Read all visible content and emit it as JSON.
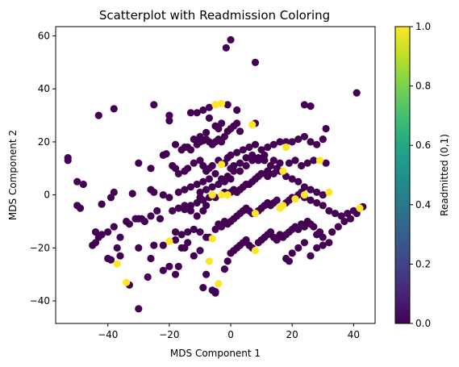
{
  "chart_data": {
    "type": "scatter",
    "title": "Scatterplot with Readmission Coloring",
    "xlabel": "MDS Component 1",
    "ylabel": "MDS Component 2",
    "xlim": [
      -57,
      47
    ],
    "ylim": [
      -48.5,
      63.5
    ],
    "xticks": [
      -40,
      -20,
      0,
      20,
      40
    ],
    "yticks": [
      -40,
      -20,
      0,
      20,
      40,
      60
    ],
    "grid": false,
    "colorbar": {
      "label": "Readmitted (0,1)",
      "range": [
        0,
        1
      ],
      "ticks": [
        0.0,
        0.2,
        0.4,
        0.6,
        0.8,
        1.0
      ],
      "colormap": "viridis"
    },
    "colors": {
      "not_readmitted": "#440154",
      "readmitted": "#fde725"
    },
    "points": [
      [
        0,
        58.5,
        0
      ],
      [
        -1.5,
        55.5,
        0
      ],
      [
        8,
        50,
        0
      ],
      [
        -38,
        32.5,
        0
      ],
      [
        -43,
        30,
        0
      ],
      [
        41,
        38.5,
        0
      ],
      [
        -13,
        31,
        0
      ],
      [
        -11,
        31,
        0
      ],
      [
        -9,
        32,
        0
      ],
      [
        -7,
        33,
        0
      ],
      [
        -5,
        34,
        1
      ],
      [
        -3,
        34.5,
        1
      ],
      [
        -1,
        34,
        0
      ],
      [
        2,
        32,
        0
      ],
      [
        24,
        34,
        0
      ],
      [
        26,
        33.5,
        0
      ],
      [
        -20,
        30,
        0
      ],
      [
        -25,
        34,
        0
      ],
      [
        -7,
        29,
        0
      ],
      [
        -53,
        14,
        0
      ],
      [
        -53,
        13,
        0
      ],
      [
        -30,
        12,
        0
      ],
      [
        -26,
        10,
        0
      ],
      [
        -22,
        15,
        0
      ],
      [
        -21,
        15.5,
        0
      ],
      [
        -15,
        18,
        0
      ],
      [
        -13,
        17,
        0
      ],
      [
        -11,
        19,
        0
      ],
      [
        -10,
        20,
        0
      ],
      [
        -9,
        20.5,
        0
      ],
      [
        -8,
        21,
        0
      ],
      [
        -7,
        20,
        0
      ],
      [
        -6,
        19,
        0
      ],
      [
        -5,
        20,
        0
      ],
      [
        -4,
        21,
        0
      ],
      [
        -3,
        20,
        0
      ],
      [
        -2,
        22,
        0
      ],
      [
        -1,
        24,
        0
      ],
      [
        0,
        25,
        0
      ],
      [
        1,
        26,
        0
      ],
      [
        2,
        27,
        0
      ],
      [
        3,
        24,
        0
      ],
      [
        -8,
        23.5,
        0
      ],
      [
        -10,
        22,
        0
      ],
      [
        -12,
        21,
        0
      ],
      [
        -14,
        18,
        0
      ],
      [
        -16,
        17,
        0
      ],
      [
        -18,
        19,
        0
      ],
      [
        -20,
        28,
        0
      ],
      [
        -4,
        25,
        0
      ],
      [
        7,
        26.5,
        1
      ],
      [
        8,
        27,
        0
      ],
      [
        -5,
        26,
        0
      ],
      [
        -3,
        27,
        0
      ],
      [
        -3,
        11.5,
        1
      ],
      [
        -1,
        14,
        0
      ],
      [
        0,
        15,
        0
      ],
      [
        2,
        16,
        0
      ],
      [
        4,
        17,
        0
      ],
      [
        6,
        18,
        0
      ],
      [
        8,
        19,
        0
      ],
      [
        10,
        17,
        0
      ],
      [
        12,
        18,
        0
      ],
      [
        14,
        19,
        0
      ],
      [
        16,
        20,
        0
      ],
      [
        18,
        18,
        1
      ],
      [
        20,
        20,
        0
      ],
      [
        22,
        21,
        0
      ],
      [
        24,
        22,
        0
      ],
      [
        26,
        20,
        0
      ],
      [
        28,
        19,
        0
      ],
      [
        30,
        21,
        0
      ],
      [
        -19,
        11,
        0
      ],
      [
        -18,
        10,
        0
      ],
      [
        -17,
        8,
        0
      ],
      [
        -15,
        9,
        0
      ],
      [
        -14,
        10,
        0
      ],
      [
        -12,
        12,
        0
      ],
      [
        -10,
        13,
        0
      ],
      [
        -9,
        11,
        0
      ],
      [
        -8,
        9,
        0
      ],
      [
        -7,
        10,
        0
      ],
      [
        -6,
        11,
        0
      ],
      [
        -4,
        13,
        0
      ],
      [
        -2,
        12,
        0
      ],
      [
        0,
        10,
        0
      ],
      [
        1,
        11,
        0
      ],
      [
        3,
        12,
        0
      ],
      [
        5,
        14,
        0
      ],
      [
        7,
        15,
        0
      ],
      [
        9,
        14,
        0
      ],
      [
        11,
        13,
        0
      ],
      [
        13,
        11,
        0
      ],
      [
        15,
        10,
        0
      ],
      [
        17,
        9,
        1
      ],
      [
        19,
        12,
        0
      ],
      [
        21,
        13,
        0
      ],
      [
        23,
        11,
        0
      ],
      [
        25,
        12,
        0
      ],
      [
        27,
        13,
        0
      ],
      [
        29,
        13,
        1
      ],
      [
        31,
        12,
        0
      ],
      [
        31,
        25,
        0
      ],
      [
        18,
        20,
        0
      ],
      [
        16,
        12,
        0
      ],
      [
        14,
        13,
        0
      ],
      [
        12,
        9,
        0
      ],
      [
        10,
        8,
        0
      ],
      [
        -50,
        5,
        0
      ],
      [
        -48,
        4,
        0
      ],
      [
        -42,
        -3.5,
        0
      ],
      [
        -38,
        1,
        0
      ],
      [
        -39,
        -1,
        0
      ],
      [
        -32,
        0.5,
        0
      ],
      [
        -26,
        2,
        0
      ],
      [
        -25,
        1,
        0
      ],
      [
        -22,
        0,
        0
      ],
      [
        -19,
        -6,
        0
      ],
      [
        -17,
        -5,
        0
      ],
      [
        -15,
        -5.5,
        0
      ],
      [
        -13,
        -4,
        0
      ],
      [
        -11,
        -3,
        0
      ],
      [
        -9,
        -2,
        0
      ],
      [
        -7,
        -1,
        0
      ],
      [
        -6,
        0,
        1
      ],
      [
        -5,
        -1,
        0
      ],
      [
        -3,
        0,
        1
      ],
      [
        -2,
        1,
        0
      ],
      [
        -1,
        0,
        1
      ],
      [
        0,
        1,
        0
      ],
      [
        1,
        2,
        0
      ],
      [
        2,
        1,
        0
      ],
      [
        3,
        2,
        0
      ],
      [
        4,
        3,
        0
      ],
      [
        5,
        4,
        0
      ],
      [
        6,
        4,
        0
      ],
      [
        7,
        5,
        0
      ],
      [
        8,
        6,
        0
      ],
      [
        9,
        7,
        0
      ],
      [
        10,
        8,
        0
      ],
      [
        12,
        7,
        0
      ],
      [
        14,
        8,
        0
      ],
      [
        16,
        9,
        0
      ],
      [
        18,
        7,
        0
      ],
      [
        20,
        6,
        0
      ],
      [
        22,
        5,
        0
      ],
      [
        24,
        3,
        0
      ],
      [
        26,
        2,
        0
      ],
      [
        28,
        1,
        0
      ],
      [
        30,
        0,
        0
      ],
      [
        32,
        1,
        1
      ],
      [
        24,
        0,
        1
      ],
      [
        -9,
        -6,
        0
      ],
      [
        -11,
        -8,
        0
      ],
      [
        -13,
        -6,
        0
      ],
      [
        -15,
        -4,
        0
      ],
      [
        -8,
        -4,
        0
      ],
      [
        -10,
        -1,
        0
      ],
      [
        -50,
        -4,
        0
      ],
      [
        -49,
        -5,
        0
      ],
      [
        -44,
        -14,
        0
      ],
      [
        -43,
        -16,
        0
      ],
      [
        -38,
        -12,
        0
      ],
      [
        -36,
        -16,
        0
      ],
      [
        -37,
        -20,
        0
      ],
      [
        -34,
        -10,
        0
      ],
      [
        -33,
        -11,
        0
      ],
      [
        -30,
        -9,
        0
      ],
      [
        -29,
        -9,
        0
      ],
      [
        -26,
        -8,
        0
      ],
      [
        -22,
        -19,
        0
      ],
      [
        -20,
        -17.5,
        1
      ],
      [
        -18,
        -14,
        0
      ],
      [
        -16,
        -15,
        0
      ],
      [
        -14,
        -14,
        0
      ],
      [
        -12,
        -13,
        0
      ],
      [
        -10,
        -14,
        0
      ],
      [
        -8,
        -16,
        0
      ],
      [
        -7,
        -16,
        0
      ],
      [
        -6,
        -16.5,
        1
      ],
      [
        -5,
        -13,
        0
      ],
      [
        -4,
        -11,
        0
      ],
      [
        -3,
        -12,
        0
      ],
      [
        -2,
        -10,
        0
      ],
      [
        -1,
        -11,
        0
      ],
      [
        0,
        -10,
        0
      ],
      [
        1,
        -9,
        0
      ],
      [
        2,
        -8,
        0
      ],
      [
        3,
        -7,
        0
      ],
      [
        4,
        -6,
        0
      ],
      [
        5,
        -5,
        0
      ],
      [
        6,
        -6,
        0
      ],
      [
        7,
        -7,
        0
      ],
      [
        8,
        -7,
        1
      ],
      [
        9,
        -6,
        0
      ],
      [
        10,
        -5,
        0
      ],
      [
        11,
        -4,
        0
      ],
      [
        12,
        -3,
        0
      ],
      [
        13,
        -4,
        0
      ],
      [
        14,
        -3,
        0
      ],
      [
        15,
        -2,
        0
      ],
      [
        16,
        -5,
        1
      ],
      [
        17,
        -4,
        1
      ],
      [
        18,
        -3,
        0
      ],
      [
        19,
        -2,
        0
      ],
      [
        20,
        -1,
        0
      ],
      [
        21,
        -1.5,
        1
      ],
      [
        22,
        0,
        0
      ],
      [
        23,
        1,
        0
      ],
      [
        24,
        -1,
        0
      ],
      [
        26,
        -2,
        0
      ],
      [
        28,
        -3,
        0
      ],
      [
        30,
        -4,
        0
      ],
      [
        32,
        -6,
        0
      ],
      [
        34,
        -7,
        0
      ],
      [
        36,
        -8,
        0
      ],
      [
        38,
        -7,
        0
      ],
      [
        40,
        -6,
        0
      ],
      [
        42,
        -5,
        1
      ],
      [
        43,
        -4.5,
        0
      ],
      [
        -18,
        -17,
        0
      ],
      [
        -16,
        -20,
        0
      ],
      [
        -14,
        -18,
        0
      ],
      [
        -42,
        -15,
        0
      ],
      [
        -40,
        -24,
        0
      ],
      [
        -39,
        -24.5,
        0
      ],
      [
        -37,
        -26,
        1
      ],
      [
        -36,
        -23,
        0
      ],
      [
        -34,
        -33,
        1
      ],
      [
        -33,
        -34,
        0
      ],
      [
        -30,
        -20,
        0
      ],
      [
        -27,
        -31,
        0
      ],
      [
        -25,
        -19,
        0
      ],
      [
        -22,
        -28.5,
        0
      ],
      [
        -20,
        -27,
        0
      ],
      [
        -18,
        -30,
        0
      ],
      [
        -17,
        -27,
        0
      ],
      [
        -15,
        -20,
        0
      ],
      [
        -12,
        -23,
        0
      ],
      [
        -10,
        -21,
        0
      ],
      [
        -9,
        -35,
        0
      ],
      [
        -8,
        -30,
        0
      ],
      [
        -7,
        -25,
        1
      ],
      [
        -6,
        -36,
        0
      ],
      [
        -5,
        -37,
        0
      ],
      [
        -4,
        -33.5,
        1
      ],
      [
        -2,
        -28,
        0
      ],
      [
        -1,
        -25,
        0
      ],
      [
        0,
        -22,
        0
      ],
      [
        1,
        -21,
        0
      ],
      [
        2,
        -20,
        0
      ],
      [
        3,
        -19,
        0
      ],
      [
        4,
        -18,
        0
      ],
      [
        5,
        -17,
        0
      ],
      [
        6,
        -19,
        0
      ],
      [
        7,
        -20,
        0
      ],
      [
        8,
        -21,
        1
      ],
      [
        9,
        -18,
        0
      ],
      [
        10,
        -17,
        0
      ],
      [
        11,
        -16,
        0
      ],
      [
        12,
        -15,
        0
      ],
      [
        13,
        -14,
        0
      ],
      [
        14,
        -16,
        0
      ],
      [
        15,
        -17,
        0
      ],
      [
        16,
        -15,
        0
      ],
      [
        17,
        -16,
        0
      ],
      [
        18,
        -15,
        0
      ],
      [
        19,
        -14,
        0
      ],
      [
        20,
        -13,
        0
      ],
      [
        21,
        -12,
        0
      ],
      [
        22,
        -13,
        0
      ],
      [
        23,
        -11,
        0
      ],
      [
        24,
        -12,
        0
      ],
      [
        25,
        -10,
        0
      ],
      [
        26,
        -11,
        0
      ],
      [
        27,
        -12,
        0
      ],
      [
        28,
        -15,
        0
      ],
      [
        29,
        -14,
        0
      ],
      [
        30,
        -16,
        0
      ],
      [
        -30,
        -43,
        0
      ],
      [
        -5,
        -36.5,
        0
      ],
      [
        -26,
        -24,
        0
      ],
      [
        18,
        -24,
        0
      ],
      [
        19,
        -25,
        0
      ],
      [
        20,
        -22,
        0
      ],
      [
        22,
        -20,
        0
      ],
      [
        24,
        -18,
        0
      ],
      [
        26,
        -23,
        0
      ],
      [
        28,
        -20,
        0
      ],
      [
        30,
        -19,
        0
      ],
      [
        32,
        -18,
        0
      ],
      [
        33,
        -14,
        0
      ],
      [
        35,
        -12,
        0
      ],
      [
        37,
        -10,
        0
      ],
      [
        39,
        -9,
        0
      ],
      [
        41,
        -7,
        0
      ],
      [
        -31,
        -9,
        0
      ],
      [
        -28,
        -10,
        0
      ],
      [
        -23,
        -9,
        0
      ],
      [
        -9,
        5,
        0
      ],
      [
        -7,
        6,
        0
      ],
      [
        -5,
        8,
        0
      ],
      [
        -3,
        6,
        0
      ],
      [
        -1,
        7,
        0
      ],
      [
        1,
        9,
        0
      ],
      [
        3,
        9,
        0
      ],
      [
        5,
        11,
        0
      ],
      [
        7,
        13,
        0
      ],
      [
        9,
        13,
        0
      ],
      [
        11,
        15,
        0
      ],
      [
        -11,
        4,
        0
      ],
      [
        -13,
        3,
        0
      ],
      [
        -15,
        2,
        0
      ],
      [
        -17,
        1,
        0
      ],
      [
        -20,
        -1,
        0
      ],
      [
        -24,
        -6,
        0
      ],
      [
        -40,
        -14,
        0
      ],
      [
        -44,
        -18,
        0
      ],
      [
        -45,
        -19,
        0
      ],
      [
        -10,
        1,
        0
      ],
      [
        -8,
        2,
        0
      ],
      [
        -6,
        3,
        0
      ],
      [
        -4,
        4,
        0
      ],
      [
        -2,
        5,
        0
      ],
      [
        0,
        6,
        0
      ]
    ]
  }
}
